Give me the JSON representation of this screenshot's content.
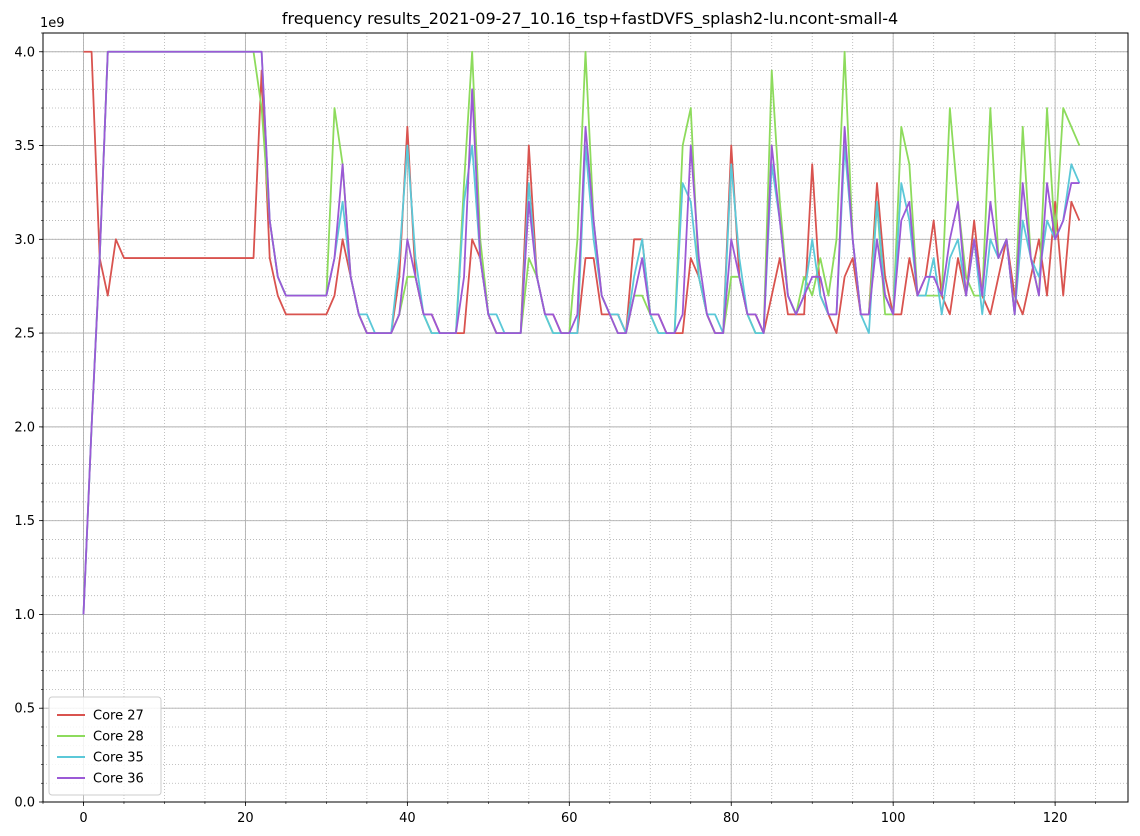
{
  "chart_data": {
    "type": "line",
    "title": "frequency results_2021-09-27_10.16_tsp+fastDVFS_splash2-lu.ncont-small-4",
    "xlabel": "",
    "ylabel": "",
    "y_offset_label": "1e9",
    "xlim": [
      -5,
      129
    ],
    "ylim": [
      0,
      4.1
    ],
    "x_ticks": [
      0,
      20,
      40,
      60,
      80,
      100,
      120
    ],
    "x_tick_labels": [
      "0",
      "20",
      "40",
      "60",
      "80",
      "100",
      "120"
    ],
    "y_ticks": [
      0.0,
      0.5,
      1.0,
      1.5,
      2.0,
      2.5,
      3.0,
      3.5,
      4.0
    ],
    "y_tick_labels": [
      "0.0",
      "0.5",
      "1.0",
      "1.5",
      "2.0",
      "2.5",
      "3.0",
      "3.5",
      "4.0"
    ],
    "grid": "major solid, minor dotted",
    "legend_position": "lower-left",
    "series": [
      {
        "name": "Core 27",
        "color": "#d9534f",
        "values": [
          4.0,
          4.0,
          2.9,
          2.7,
          3.0,
          2.9,
          2.9,
          2.9,
          2.9,
          2.9,
          2.9,
          2.9,
          2.9,
          2.9,
          2.9,
          2.9,
          2.9,
          2.9,
          2.9,
          2.9,
          2.9,
          2.9,
          3.9,
          2.9,
          2.7,
          2.6,
          2.6,
          2.6,
          2.6,
          2.6,
          2.6,
          2.7,
          3.0,
          2.8,
          2.6,
          2.5,
          2.5,
          2.5,
          2.5,
          2.8,
          3.6,
          2.8,
          2.6,
          2.6,
          2.5,
          2.5,
          2.5,
          2.5,
          3.0,
          2.9,
          2.6,
          2.5,
          2.5,
          2.5,
          2.5,
          3.5,
          2.8,
          2.6,
          2.6,
          2.5,
          2.5,
          2.5,
          2.9,
          2.9,
          2.6,
          2.6,
          2.6,
          2.5,
          3.0,
          3.0,
          2.6,
          2.6,
          2.5,
          2.5,
          2.5,
          2.9,
          2.8,
          2.6,
          2.5,
          2.5,
          3.5,
          2.8,
          2.6,
          2.6,
          2.5,
          2.7,
          2.9,
          2.6,
          2.6,
          2.6,
          3.4,
          2.7,
          2.6,
          2.5,
          2.8,
          2.9,
          2.6,
          2.6,
          3.3,
          2.8,
          2.6,
          2.6,
          2.9,
          2.7,
          2.8,
          3.1,
          2.7,
          2.6,
          2.9,
          2.7,
          3.1,
          2.7,
          2.6,
          2.8,
          3.0,
          2.7,
          2.6,
          2.8,
          3.0,
          2.7,
          3.2,
          2.7,
          3.2,
          3.1
        ]
      },
      {
        "name": "Core 28",
        "color": "#8ddb5c",
        "values": [
          1.0,
          2.0,
          2.9,
          4.0,
          4.0,
          4.0,
          4.0,
          4.0,
          4.0,
          4.0,
          4.0,
          4.0,
          4.0,
          4.0,
          4.0,
          4.0,
          4.0,
          4.0,
          4.0,
          4.0,
          4.0,
          4.0,
          3.7,
          3.1,
          2.8,
          2.7,
          2.7,
          2.7,
          2.7,
          2.7,
          2.7,
          3.7,
          3.4,
          2.8,
          2.6,
          2.5,
          2.5,
          2.5,
          2.5,
          2.6,
          2.8,
          2.8,
          2.6,
          2.5,
          2.5,
          2.5,
          2.5,
          3.3,
          4.0,
          3.0,
          2.6,
          2.5,
          2.5,
          2.5,
          2.5,
          2.9,
          2.8,
          2.6,
          2.5,
          2.5,
          2.5,
          3.0,
          4.0,
          3.1,
          2.7,
          2.6,
          2.5,
          2.5,
          2.7,
          2.7,
          2.6,
          2.5,
          2.5,
          2.5,
          3.5,
          3.7,
          2.8,
          2.6,
          2.5,
          2.5,
          2.8,
          2.8,
          2.6,
          2.5,
          2.5,
          3.9,
          3.2,
          2.7,
          2.6,
          2.8,
          2.7,
          2.9,
          2.7,
          3.0,
          4.0,
          3.0,
          2.6,
          2.6,
          3.2,
          2.6,
          2.6,
          3.6,
          3.4,
          2.7,
          2.7,
          2.7,
          2.7,
          3.7,
          3.2,
          2.8,
          2.7,
          2.7,
          3.7,
          2.9,
          3.0,
          2.6,
          3.6,
          2.9,
          2.7,
          3.7,
          3.0,
          3.7,
          3.6,
          3.5
        ]
      },
      {
        "name": "Core 35",
        "color": "#5bc8d8",
        "values": [
          1.0,
          2.0,
          2.9,
          4.0,
          4.0,
          4.0,
          4.0,
          4.0,
          4.0,
          4.0,
          4.0,
          4.0,
          4.0,
          4.0,
          4.0,
          4.0,
          4.0,
          4.0,
          4.0,
          4.0,
          4.0,
          4.0,
          4.0,
          3.1,
          2.8,
          2.7,
          2.7,
          2.7,
          2.7,
          2.7,
          2.7,
          2.9,
          3.2,
          2.8,
          2.6,
          2.6,
          2.5,
          2.5,
          2.5,
          2.9,
          3.5,
          2.9,
          2.6,
          2.5,
          2.5,
          2.5,
          2.5,
          3.2,
          3.5,
          2.9,
          2.6,
          2.6,
          2.5,
          2.5,
          2.5,
          3.3,
          2.8,
          2.6,
          2.5,
          2.5,
          2.5,
          2.5,
          3.5,
          3.0,
          2.7,
          2.6,
          2.6,
          2.5,
          2.8,
          3.0,
          2.6,
          2.5,
          2.5,
          2.5,
          3.3,
          3.2,
          2.8,
          2.6,
          2.6,
          2.5,
          3.4,
          2.9,
          2.6,
          2.5,
          2.5,
          3.4,
          3.1,
          2.7,
          2.6,
          2.7,
          3.0,
          2.7,
          2.6,
          2.6,
          3.5,
          3.0,
          2.6,
          2.5,
          3.2,
          2.7,
          2.6,
          3.3,
          3.1,
          2.7,
          2.7,
          2.9,
          2.6,
          2.9,
          3.0,
          2.7,
          3.0,
          2.6,
          3.0,
          2.9,
          3.0,
          2.6,
          3.1,
          2.9,
          2.8,
          3.1,
          3.0,
          3.1,
          3.4,
          3.3
        ]
      },
      {
        "name": "Core 36",
        "color": "#9b59d6",
        "values": [
          1.0,
          2.0,
          2.9,
          4.0,
          4.0,
          4.0,
          4.0,
          4.0,
          4.0,
          4.0,
          4.0,
          4.0,
          4.0,
          4.0,
          4.0,
          4.0,
          4.0,
          4.0,
          4.0,
          4.0,
          4.0,
          4.0,
          4.0,
          3.1,
          2.8,
          2.7,
          2.7,
          2.7,
          2.7,
          2.7,
          2.7,
          2.9,
          3.4,
          2.8,
          2.6,
          2.5,
          2.5,
          2.5,
          2.5,
          2.6,
          3.0,
          2.8,
          2.6,
          2.6,
          2.5,
          2.5,
          2.5,
          2.8,
          3.8,
          2.9,
          2.6,
          2.5,
          2.5,
          2.5,
          2.5,
          3.2,
          2.8,
          2.6,
          2.6,
          2.5,
          2.5,
          2.6,
          3.6,
          3.1,
          2.7,
          2.6,
          2.5,
          2.5,
          2.7,
          2.9,
          2.6,
          2.6,
          2.5,
          2.5,
          2.6,
          3.5,
          2.9,
          2.6,
          2.5,
          2.5,
          3.0,
          2.8,
          2.6,
          2.6,
          2.5,
          3.5,
          3.1,
          2.7,
          2.6,
          2.7,
          2.8,
          2.8,
          2.6,
          2.6,
          3.6,
          3.0,
          2.6,
          2.6,
          3.0,
          2.7,
          2.6,
          3.1,
          3.2,
          2.7,
          2.8,
          2.8,
          2.7,
          3.0,
          3.2,
          2.7,
          3.0,
          2.7,
          3.2,
          2.9,
          3.0,
          2.6,
          3.3,
          2.9,
          2.7,
          3.3,
          3.0,
          3.1,
          3.3,
          3.3
        ]
      }
    ]
  }
}
